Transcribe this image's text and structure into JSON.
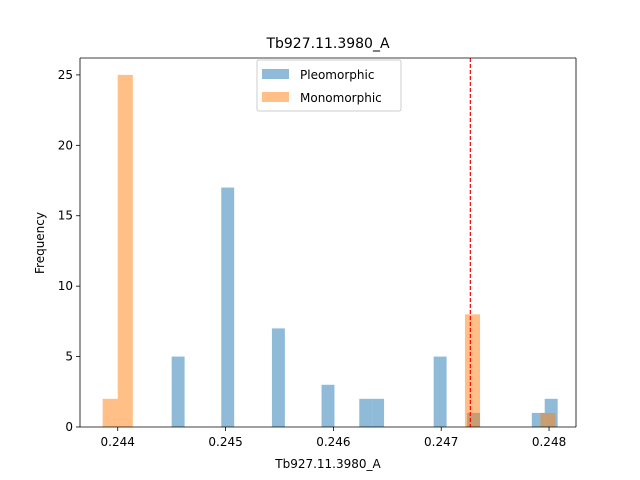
{
  "chart_data": {
    "type": "histogram",
    "title": "Tb927.11.3980_A",
    "xlabel": "Tb927.11.3980_A",
    "ylabel": "Frequency",
    "xlim": [
      0.24365,
      0.24825
    ],
    "ylim": [
      0,
      26.2
    ],
    "xticks": [
      0.244,
      0.245,
      0.246,
      0.247,
      0.248
    ],
    "xtick_labels": [
      "0.244",
      "0.245",
      "0.246",
      "0.247",
      "0.248"
    ],
    "yticks": [
      0,
      5,
      10,
      15,
      20,
      25
    ],
    "ytick_labels": [
      "0",
      "5",
      "10",
      "15",
      "20",
      "25"
    ],
    "grid": false,
    "legend_position": "top-center",
    "series": [
      {
        "name": "Pleomorphic",
        "color": "#1f77b4",
        "opacity": 0.5,
        "bins": [
          {
            "x0": 0.2445,
            "x1": 0.24462,
            "count": 5
          },
          {
            "x0": 0.24496,
            "x1": 0.24508,
            "count": 17
          },
          {
            "x0": 0.24543,
            "x1": 0.24555,
            "count": 7
          },
          {
            "x0": 0.24589,
            "x1": 0.24601,
            "count": 3
          },
          {
            "x0": 0.24624,
            "x1": 0.24636,
            "count": 2
          },
          {
            "x0": 0.24636,
            "x1": 0.24647,
            "count": 2
          },
          {
            "x0": 0.24693,
            "x1": 0.24705,
            "count": 5
          },
          {
            "x0": 0.24724,
            "x1": 0.24736,
            "count": 1
          },
          {
            "x0": 0.24784,
            "x1": 0.24796,
            "count": 1
          },
          {
            "x0": 0.24796,
            "x1": 0.24808,
            "count": 2
          }
        ]
      },
      {
        "name": "Monomorphic",
        "color": "#ff7f0e",
        "opacity": 0.5,
        "bins": [
          {
            "x0": 0.24386,
            "x1": 0.244,
            "count": 2
          },
          {
            "x0": 0.244,
            "x1": 0.24414,
            "count": 25
          },
          {
            "x0": 0.24722,
            "x1": 0.24736,
            "count": 8
          },
          {
            "x0": 0.24792,
            "x1": 0.24806,
            "count": 1
          }
        ]
      }
    ],
    "reference_line": {
      "x": 0.24727,
      "color": "#ff0000",
      "style": "dashed"
    }
  }
}
